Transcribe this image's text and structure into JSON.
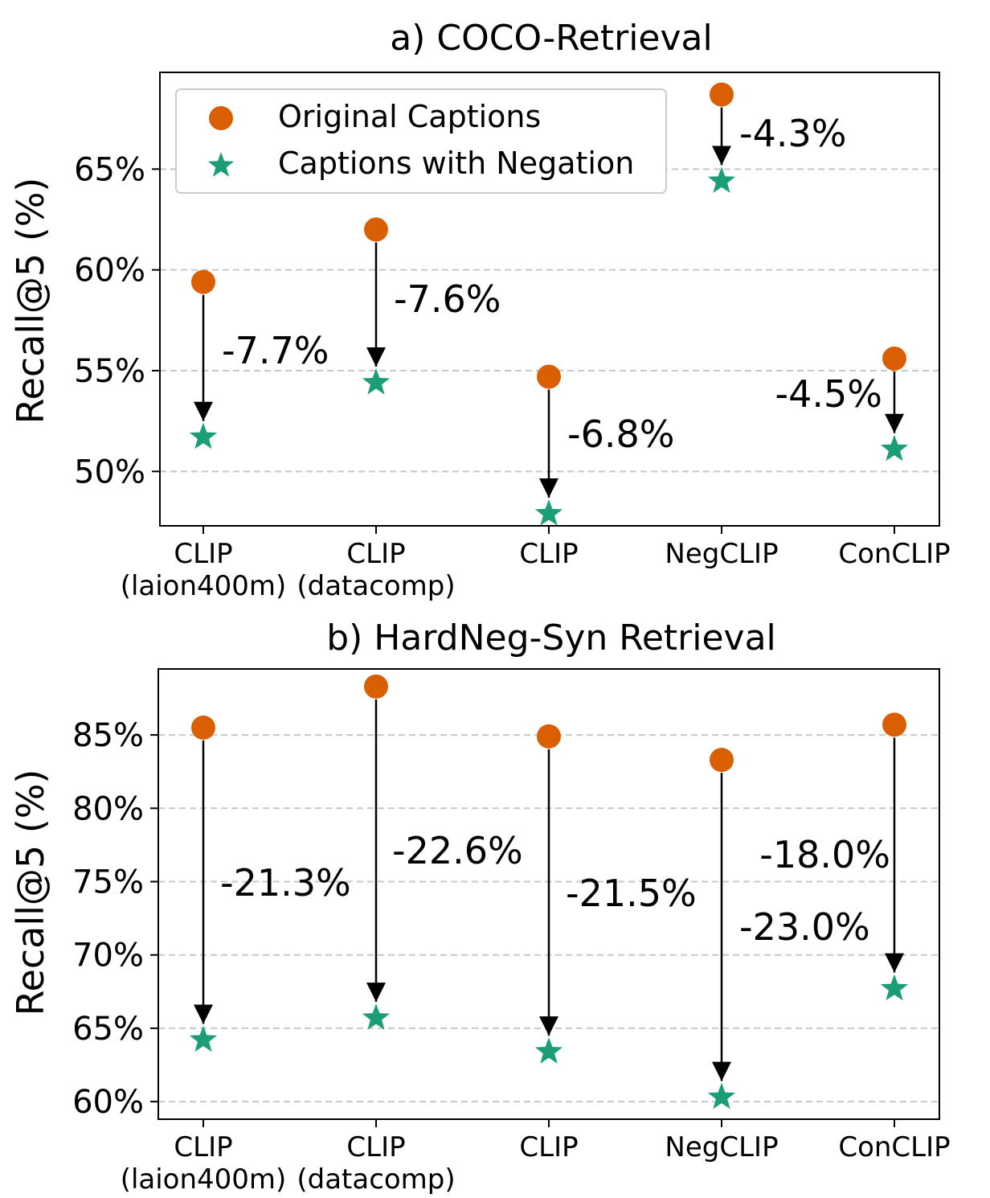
{
  "chart_data": [
    {
      "id": "a",
      "type": "scatter",
      "title": "a) COCO-Retrieval",
      "ylabel": "Recall@5 (%)",
      "xlabel": "",
      "categories": [
        "CLIP\n(laion400m)",
        "CLIP\n(datacomp)",
        "CLIP",
        "NegCLIP",
        "ConCLIP"
      ],
      "ylim": [
        47.3,
        69.8
      ],
      "yticks": [
        50,
        55,
        60,
        65
      ],
      "ytick_labels": [
        "50%",
        "55%",
        "60%",
        "65%"
      ],
      "grid": true,
      "legend_position": "upper-left",
      "series": [
        {
          "name": "Original Captions",
          "marker": "circle",
          "values": [
            59.4,
            62.0,
            54.7,
            68.7,
            55.6
          ]
        },
        {
          "name": "Captions with Negation",
          "marker": "star",
          "values": [
            51.7,
            54.4,
            47.9,
            64.4,
            51.1
          ]
        }
      ],
      "annotations": [
        "-7.7%",
        "-7.6%",
        "-6.8%",
        "-4.3%",
        "-4.5%"
      ]
    },
    {
      "id": "b",
      "type": "scatter",
      "title": "b) HardNeg-Syn Retrieval",
      "ylabel": "Recall@5 (%)",
      "xlabel": "",
      "categories": [
        "CLIP\n(laion400m)",
        "CLIP\n(datacomp)",
        "CLIP",
        "NegCLIP",
        "ConCLIP"
      ],
      "ylim": [
        58.8,
        89.5
      ],
      "yticks": [
        60,
        65,
        70,
        75,
        80,
        85
      ],
      "ytick_labels": [
        "60%",
        "65%",
        "70%",
        "75%",
        "80%",
        "85%"
      ],
      "grid": true,
      "series": [
        {
          "name": "Original Captions",
          "marker": "circle",
          "values": [
            85.5,
            88.3,
            84.9,
            83.3,
            85.7
          ]
        },
        {
          "name": "Captions with Negation",
          "marker": "star",
          "values": [
            64.2,
            65.7,
            63.4,
            60.3,
            67.7
          ]
        }
      ],
      "annotations": [
        "-21.3%",
        "-22.6%",
        "-21.5%",
        "-23.0%",
        "-18.0%"
      ]
    }
  ],
  "colors": {
    "original": "#d95f02",
    "negation": "#1b9e77",
    "grid": "#c8c8c8",
    "axis": "#000000"
  },
  "legend": {
    "items": [
      "Original Captions",
      "Captions with Negation"
    ]
  }
}
